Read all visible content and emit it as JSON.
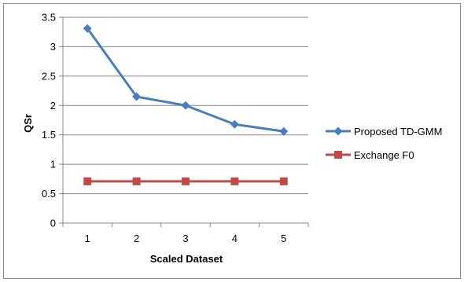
{
  "chart_data": {
    "type": "line",
    "categories": [
      "1",
      "2",
      "3",
      "4",
      "5"
    ],
    "x": [
      1,
      2,
      3,
      4,
      5
    ],
    "series": [
      {
        "name": "Proposed TD-GMM",
        "values": [
          3.31,
          2.15,
          2.0,
          1.68,
          1.56
        ],
        "color": "#4A7EBB",
        "marker": "diamond"
      },
      {
        "name": "Exchange F0",
        "values": [
          0.71,
          0.71,
          0.71,
          0.71,
          0.71
        ],
        "color": "#BE4B48",
        "marker": "square"
      }
    ],
    "title": "",
    "xlabel": "Scaled Dataset",
    "ylabel": "QSr",
    "ylim": [
      0,
      3.5
    ],
    "yticks": [
      "0",
      "0.5",
      "1",
      "1.5",
      "2",
      "2.5",
      "3",
      "3.5"
    ],
    "grid": true,
    "legend": "right"
  }
}
